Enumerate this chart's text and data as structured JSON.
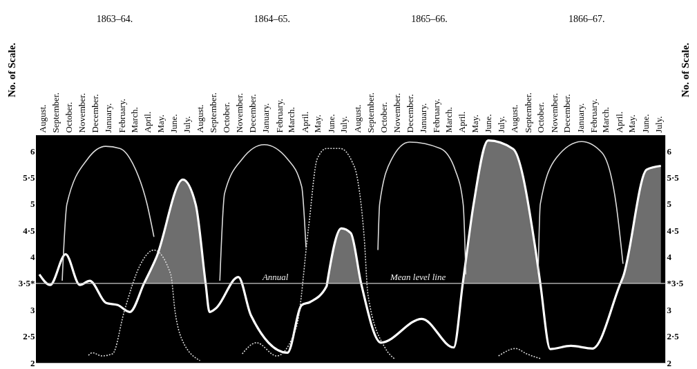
{
  "chart_data": {
    "type": "line",
    "ylabel": "No. of Scale.",
    "y2label": "No. of Scale.",
    "xlim": [
      "1863-08-01",
      "1867-08-01"
    ],
    "xticks": [
      {
        "value": "1863-08-16",
        "label": "August."
      },
      {
        "value": "1863-09-16",
        "label": "September."
      },
      {
        "value": "1863-10-16",
        "label": "October."
      },
      {
        "value": "1863-11-16",
        "label": "November."
      },
      {
        "value": "1863-12-16",
        "label": "December."
      },
      {
        "value": "1864-01-16",
        "label": "January."
      },
      {
        "value": "1864-02-16",
        "label": "February."
      },
      {
        "value": "1864-03-16",
        "label": "March."
      },
      {
        "value": "1864-04-16",
        "label": "April."
      },
      {
        "value": "1864-05-16",
        "label": "May."
      },
      {
        "value": "1864-06-16",
        "label": "June."
      },
      {
        "value": "1864-07-16",
        "label": "July."
      },
      {
        "value": "1864-08-16",
        "label": "August."
      },
      {
        "value": "1864-09-16",
        "label": "September."
      },
      {
        "value": "1864-10-16",
        "label": "October."
      },
      {
        "value": "1864-11-16",
        "label": "November."
      },
      {
        "value": "1864-12-16",
        "label": "December."
      },
      {
        "value": "1865-01-16",
        "label": "January."
      },
      {
        "value": "1865-02-16",
        "label": "February."
      },
      {
        "value": "1865-03-16",
        "label": "March."
      },
      {
        "value": "1865-04-16",
        "label": "April."
      },
      {
        "value": "1865-05-16",
        "label": "May."
      },
      {
        "value": "1865-06-16",
        "label": "June."
      },
      {
        "value": "1865-07-16",
        "label": "July."
      },
      {
        "value": "1865-08-16",
        "label": "August."
      },
      {
        "value": "1865-09-16",
        "label": "September."
      },
      {
        "value": "1865-10-16",
        "label": "October."
      },
      {
        "value": "1865-11-16",
        "label": "November."
      },
      {
        "value": "1865-12-16",
        "label": "December."
      },
      {
        "value": "1866-01-16",
        "label": "January."
      },
      {
        "value": "1866-02-16",
        "label": "February."
      },
      {
        "value": "1866-03-16",
        "label": "March."
      },
      {
        "value": "1866-04-16",
        "label": "April."
      },
      {
        "value": "1866-05-16",
        "label": "May."
      },
      {
        "value": "1866-06-16",
        "label": "June."
      },
      {
        "value": "1866-07-16",
        "label": "July."
      },
      {
        "value": "1866-08-16",
        "label": "August."
      },
      {
        "value": "1866-09-16",
        "label": "September."
      },
      {
        "value": "1866-10-16",
        "label": "October."
      },
      {
        "value": "1866-11-16",
        "label": "November."
      },
      {
        "value": "1866-12-16",
        "label": "December."
      },
      {
        "value": "1867-01-16",
        "label": "January."
      },
      {
        "value": "1867-02-16",
        "label": "February."
      },
      {
        "value": "1867-03-16",
        "label": "March."
      },
      {
        "value": "1867-04-16",
        "label": "April."
      },
      {
        "value": "1867-05-16",
        "label": "May."
      },
      {
        "value": "1867-06-16",
        "label": "June."
      },
      {
        "value": "1867-07-16",
        "label": "July."
      }
    ],
    "ylim": [
      2,
      6.3
    ],
    "yticks": [
      2,
      {
        "value": 2.5,
        "label": "2·5"
      },
      3,
      {
        "value": 3.5,
        "label": "3·5*"
      },
      4,
      {
        "value": 4.5,
        "label": "4·5"
      },
      5,
      {
        "value": 5.5,
        "label": "5·5"
      },
      6
    ],
    "y2lim": [
      2,
      6.3
    ],
    "y2ticks": [
      2,
      {
        "value": 2.5,
        "label": "2·5"
      },
      3,
      {
        "value": 3.5,
        "label": "*3·5"
      },
      4,
      {
        "value": 4.5,
        "label": "4·5"
      },
      5,
      {
        "value": 5.5,
        "label": "5·5"
      },
      6
    ],
    "grid": true,
    "series": [
      {
        "color": "#ffffff",
        "line_style": "solid",
        "x": [
          "1863-08-09",
          "1863-09-03",
          "1863-10-09",
          "1863-11-11",
          "1863-12-04",
          "1864-01-11",
          "1864-02-07",
          "1864-03-06",
          "1864-04-08",
          "1864-05-07",
          "1864-07-07",
          "1864-08-06",
          "1864-08-29",
          "1864-09-07",
          "1864-09-22",
          "1864-11-13",
          "1864-12-12",
          "1865-03-07",
          "1865-04-09",
          "1865-04-29",
          "1865-06-06",
          "1865-06-07",
          "1865-07-10",
          "1865-08-01",
          "1865-08-25",
          "1865-10-10",
          "1866-01-13",
          "1866-03-28",
          "1866-04-18",
          "1866-05-13",
          "1866-06-16",
          "1866-08-13",
          "1866-10-04",
          "1866-10-15",
          "1866-11-07",
          "1866-12-25",
          "1867-02-13",
          "1867-04-19",
          "1867-04-25",
          "1867-06-19",
          "1867-07-22"
        ],
        "values": [
          3.67,
          3.47,
          4.05,
          3.47,
          3.55,
          3.13,
          3.09,
          2.96,
          3.5,
          4.0,
          5.46,
          4.99,
          3.5,
          2.96,
          3.03,
          3.62,
          2.9,
          2.19,
          3.09,
          3.15,
          3.45,
          3.5,
          4.54,
          4.45,
          3.5,
          2.38,
          2.83,
          2.29,
          3.5,
          4.99,
          6.2,
          6.04,
          4.13,
          3.5,
          2.26,
          2.32,
          2.27,
          3.5,
          3.62,
          5.65,
          5.72
        ],
        "lower": [
          null,
          null,
          null,
          null,
          null,
          null,
          null,
          null,
          3.5,
          3.5,
          3.5,
          3.5,
          3.5,
          null,
          null,
          null,
          null,
          null,
          null,
          null,
          null,
          3.5,
          3.5,
          3.5,
          3.5,
          null,
          null,
          null,
          3.5,
          3.5,
          3.5,
          3.5,
          3.5,
          3.5,
          null,
          null,
          null,
          3.5,
          3.5,
          3.5,
          3.5
        ],
        "upper": [
          null,
          null,
          null,
          null,
          null,
          null,
          null,
          null,
          3.5,
          4.0,
          5.46,
          4.99,
          3.5,
          null,
          null,
          null,
          null,
          null,
          null,
          null,
          null,
          3.5,
          4.54,
          4.45,
          3.5,
          null,
          null,
          null,
          3.5,
          4.99,
          6.2,
          6.04,
          4.13,
          3.5,
          null,
          null,
          null,
          3.5,
          3.62,
          5.65,
          5.72
        ]
      },
      {
        "color": "#dddddd",
        "line_style": "solid",
        "x": [
          "1863-10-01",
          "1863-10-12",
          "1863-11-29",
          "1864-01-10",
          "1864-02-12",
          "1864-03-13",
          "1864-04-15",
          "1864-05-01",
          "1864-07-16",
          "1864-10-01",
          "1864-10-12",
          "1864-11-22",
          "1865-01-12",
          "1865-03-07",
          "1865-04-09",
          "1865-04-19",
          "1865-07-16",
          "1865-10-03",
          "1865-10-07",
          "1865-11-04",
          "1865-12-15",
          "1866-02-25",
          "1866-04-01",
          "1866-04-19",
          "1866-04-25",
          "1866-07-16",
          "1866-10-10",
          "1866-10-15",
          "1866-11-22",
          "1867-01-19",
          "1867-03-07",
          "1867-04-09",
          "1867-04-25"
        ],
        "values": [
          3.55,
          5.0,
          5.85,
          6.09,
          6.05,
          5.76,
          5.0,
          4.38,
          null,
          3.55,
          5.2,
          5.85,
          6.12,
          5.85,
          5.33,
          4.18,
          null,
          4.13,
          5.0,
          5.85,
          6.17,
          6.05,
          5.63,
          4.99,
          3.67,
          null,
          3.7,
          5.0,
          5.88,
          6.18,
          5.97,
          5.0,
          3.87
        ]
      },
      {
        "color": "#dddddd",
        "line_style": "dotted",
        "x": [
          "1863-12-01",
          "1863-12-10",
          "1864-01-01",
          "1864-01-26",
          "1864-02-22",
          "1864-03-29",
          "1864-05-01",
          "1864-06-09",
          "1864-06-19",
          "1864-07-04",
          "1864-08-16",
          "1864-10-01",
          "1864-11-22",
          "1864-12-25",
          "1865-02-10",
          "1865-03-28",
          "1865-04-25",
          "1865-05-15",
          "1865-06-06",
          "1865-07-07",
          "1865-08-04",
          "1865-08-15",
          "1865-09-01",
          "1865-09-10",
          "1865-10-19",
          "1865-11-10",
          "1866-02-16",
          "1866-07-10",
          "1866-08-19",
          "1866-09-13",
          "1866-10-15"
        ],
        "values": [
          2.14,
          2.19,
          2.13,
          2.17,
          2.97,
          3.83,
          4.13,
          3.67,
          2.97,
          2.46,
          2.04,
          null,
          2.17,
          2.38,
          2.13,
          2.68,
          4.56,
          5.85,
          6.05,
          6.05,
          5.8,
          5.54,
          4.38,
          3.28,
          2.29,
          2.08,
          null,
          2.13,
          2.27,
          2.17,
          2.08
        ]
      }
    ],
    "ref_lines": [
      {
        "axis": "y",
        "value": 3.5,
        "color": "#cccccc"
      }
    ],
    "annotations": [
      "1863–64.",
      "1864–65.",
      "1865–66.",
      "1866–67.",
      {
        "text": "Annual",
        "x": "1865-02-07",
        "y": 3.5
      },
      {
        "text": "Mean level line",
        "x": "1866-01-04",
        "y": 3.5
      }
    ]
  }
}
